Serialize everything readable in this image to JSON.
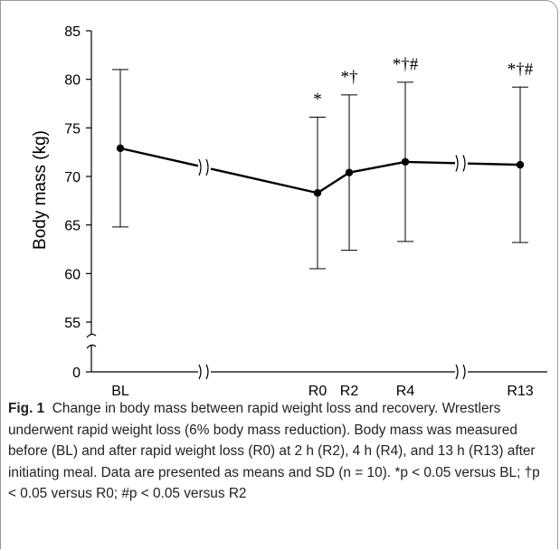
{
  "chart_data": {
    "type": "line",
    "title": "",
    "xlabel": "",
    "ylabel": "Body mass (kg)",
    "ylim_upper": [
      55,
      85
    ],
    "ylim_lower": [
      0,
      0
    ],
    "yticks": [
      0,
      55,
      60,
      65,
      70,
      75,
      80,
      85
    ],
    "categories": [
      "BL",
      "R0",
      "R2",
      "R4",
      "R13"
    ],
    "series": [
      {
        "values": [
          72.9,
          68.3,
          70.4,
          71.5,
          71.2
        ],
        "sd": [
          8.1,
          7.8,
          8.0,
          8.2,
          8.0
        ],
        "significance": [
          "",
          "*",
          "*†",
          "*†#",
          "*†#"
        ]
      }
    ],
    "grid": false
  },
  "caption": {
    "label": "Fig. 1",
    "text": "Change in body mass between rapid weight loss and recovery. Wrestlers underwent rapid weight loss (6% body mass reduction). Body mass was measured before (BL) and after rapid weight loss (R0) at 2 h (R2), 4 h (R4), and 13 h (R13) after initiating meal. Data are presented as means and SD (n = 10). *p < 0.05 versus BL; †p < 0.05 versus R0; #p < 0.05 versus R2"
  }
}
